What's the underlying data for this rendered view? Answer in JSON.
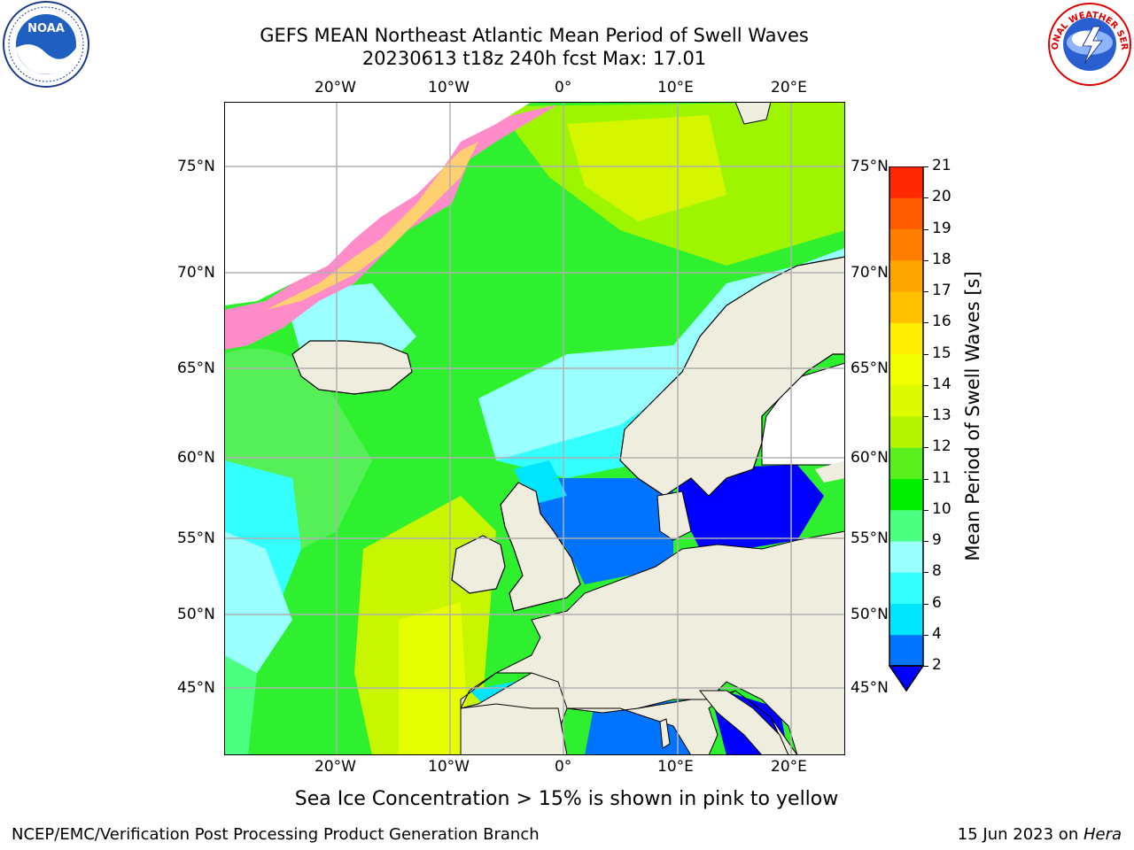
{
  "header": {
    "title_line1": "GEFS MEAN Northeast Atlantic Mean Period of Swell Waves",
    "title_line2": "20230613 t18z 240h fcst   Max: 17.01"
  },
  "logos": {
    "left": "noaa-logo",
    "right": "national-weather-service-logo",
    "right_text": "NATIONAL WEATHER SERVICE"
  },
  "map": {
    "lon_labels": [
      "20°W",
      "10°W",
      "0°",
      "10°E",
      "20°E"
    ],
    "lat_labels": [
      "75°N",
      "70°N",
      "65°N",
      "60°N",
      "55°N",
      "50°N",
      "45°N"
    ],
    "note": "Sea Ice Concentration > 15% is shown in pink to yellow"
  },
  "colorbar": {
    "label": "Mean Period of Swell Waves [s]",
    "ticks": [
      "2",
      "4",
      "6",
      "8",
      "9",
      "10",
      "11",
      "12",
      "13",
      "14",
      "15",
      "16",
      "17",
      "18",
      "19",
      "20",
      "21"
    ],
    "colors": [
      "#0073ff",
      "#00e5ff",
      "#33ffff",
      "#99ffff",
      "#4dff80",
      "#00ef00",
      "#5aef1e",
      "#b5f500",
      "#dcfa00",
      "#f0ff00",
      "#ffee00",
      "#ffc000",
      "#ffa500",
      "#ff7d00",
      "#ff5a00",
      "#ff2800",
      "#ff0000"
    ],
    "under_color": "#0000ff"
  },
  "footer": {
    "left": "NCEP/EMC/Verification Post Processing Product Generation Branch",
    "right_date": "15 Jun 2023 on ",
    "right_host": "Hera"
  }
}
